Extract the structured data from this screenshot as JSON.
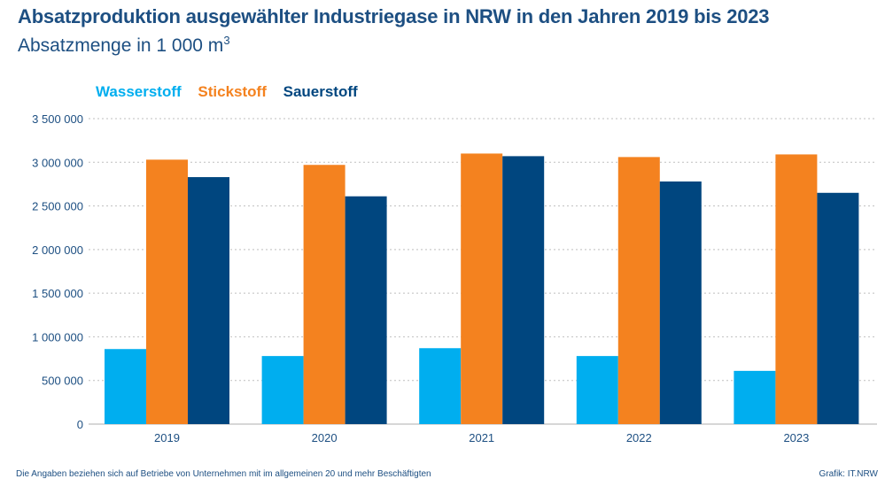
{
  "chart_data": {
    "type": "bar",
    "title": "Absatzproduktion ausgewählter Industriegase in NRW in den Jahren 2019 bis 2023",
    "subtitle_prefix": "Absatzmenge in 1 000 m",
    "subtitle_sup": "3",
    "categories": [
      "2019",
      "2020",
      "2021",
      "2022",
      "2023"
    ],
    "series": [
      {
        "name": "Wasserstoff",
        "color": "#00aeef",
        "values": [
          860000,
          780000,
          870000,
          780000,
          610000
        ]
      },
      {
        "name": "Stickstoff",
        "color": "#f4821f",
        "values": [
          3030000,
          2970000,
          3100000,
          3060000,
          3090000
        ]
      },
      {
        "name": "Sauerstoff",
        "color": "#00467f",
        "values": [
          2830000,
          2610000,
          3070000,
          2780000,
          2650000
        ]
      }
    ],
    "ylim": [
      0,
      3500000
    ],
    "yticks": [
      {
        "value": 0,
        "label": "0"
      },
      {
        "value": 500000,
        "label": "500 000"
      },
      {
        "value": 1000000,
        "label": "1 000 000"
      },
      {
        "value": 1500000,
        "label": "1 500 000"
      },
      {
        "value": 2000000,
        "label": "2 000 000"
      },
      {
        "value": 2500000,
        "label": "2 500 000"
      },
      {
        "value": 3000000,
        "label": "3 000 000"
      },
      {
        "value": 3500000,
        "label": "3 500 000"
      }
    ],
    "grid": true,
    "legend_position": "top-left"
  },
  "footnote": "Die Angaben beziehen sich auf Betriebe von Unternehmen mit im allgemeinen 20 und mehr Beschäftigten",
  "credit": "Grafik: IT.NRW",
  "colors": {
    "title": "#1d4f82",
    "grid": "#bfbfbf"
  }
}
